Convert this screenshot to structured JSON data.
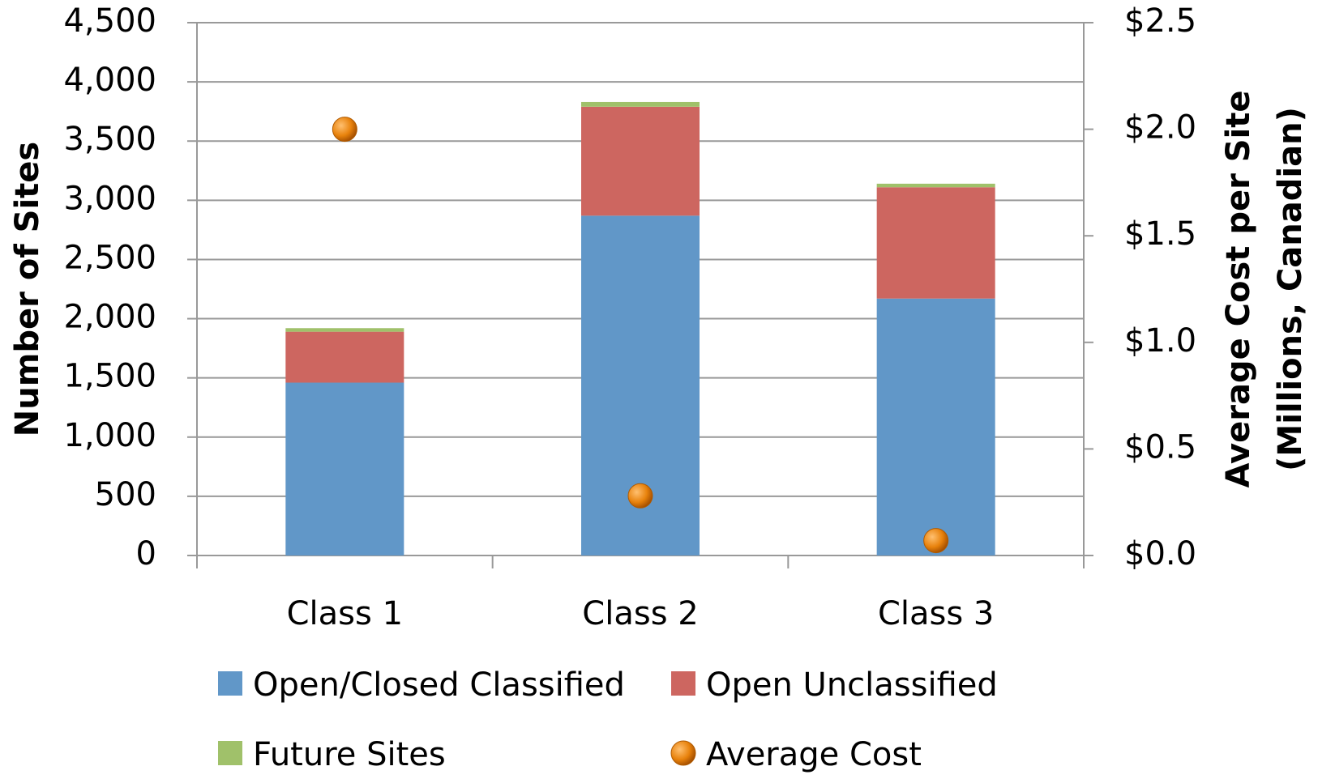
{
  "chart_data": {
    "type": "bar",
    "stacked": true,
    "categories": [
      "Class 1",
      "Class 2",
      "Class 3"
    ],
    "series": [
      {
        "name": "Open/Closed Classified",
        "color": "#6197c8",
        "values": [
          1460,
          2870,
          2170
        ]
      },
      {
        "name": "Open Unclassified",
        "color": "#cd6660",
        "values": [
          430,
          920,
          940
        ]
      },
      {
        "name": "Future Sites",
        "color": "#a0c16a",
        "values": [
          30,
          40,
          30
        ]
      },
      {
        "name": "Average Cost",
        "color": "#e8820c",
        "type": "scatter",
        "axis": "y2",
        "values": [
          2.0,
          0.28,
          0.07
        ]
      }
    ],
    "y_label": "Number of Sites",
    "y2_label": [
      "Average Cost per Site",
      "(Millions, Canadian)"
    ],
    "ylim": [
      0,
      4500
    ],
    "yticks": [
      0,
      500,
      {
        "value": 1000,
        "label": "1,000"
      },
      {
        "value": 1500,
        "label": "1,500"
      },
      {
        "value": 2000,
        "label": "2,000"
      },
      {
        "value": 2500,
        "label": "2,500"
      },
      {
        "value": 3000,
        "label": "3,000"
      },
      {
        "value": 3500,
        "label": "3,500"
      },
      {
        "value": 4000,
        "label": "4,000"
      },
      {
        "value": 4500,
        "label": "4,500"
      }
    ],
    "y2lim": [
      0,
      2.5
    ],
    "y2ticks": [
      {
        "value": 0,
        "label": "$0.0"
      },
      {
        "value": 0.5,
        "label": "$0.5"
      },
      {
        "value": 1.0,
        "label": "$1.0"
      },
      {
        "value": 1.5,
        "label": "$1.5"
      },
      {
        "value": 2.0,
        "label": "$2.0"
      },
      {
        "value": 2.5,
        "label": "$2.5"
      }
    ],
    "grid": true,
    "legend": "bottom"
  }
}
